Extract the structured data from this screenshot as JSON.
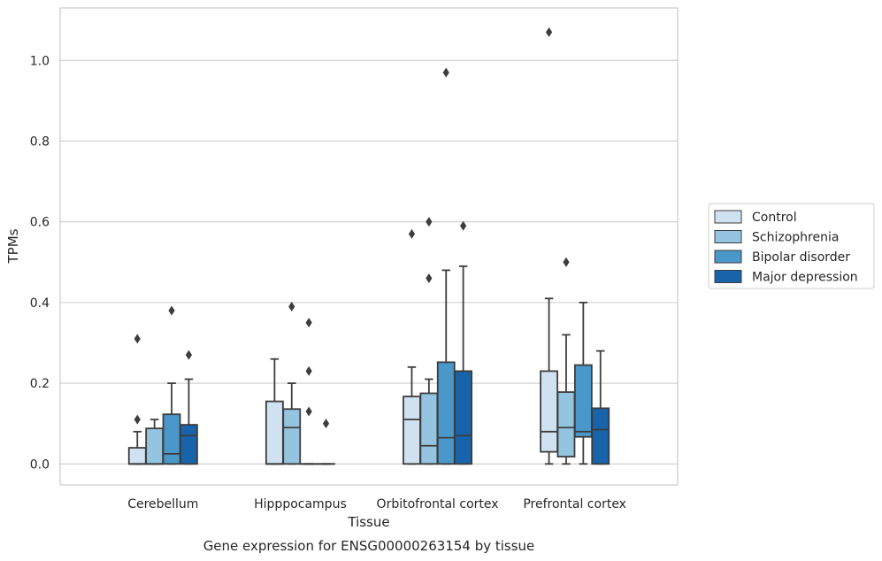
{
  "chart_data": {
    "type": "box",
    "caption": "Gene expression for ENSG00000263154 by tissue",
    "xlabel": "Tissue",
    "ylabel": "TPMs",
    "ylim": [
      -0.052,
      1.13
    ],
    "yticks": [
      0.0,
      0.2,
      0.4,
      0.6,
      0.8,
      1.0
    ],
    "ytick_labels": [
      "0.0",
      "0.2",
      "0.4",
      "0.6",
      "0.8",
      "1.0"
    ],
    "grid": "horizontal",
    "legend_position": "right",
    "categories": [
      "Cerebellum",
      "Hipppocampus",
      "Orbitofrontal cortex",
      "Prefrontal cortex"
    ],
    "series": [
      {
        "name": "Control",
        "color": "#d0e1f2",
        "boxes": [
          {
            "min": 0.0,
            "q1": 0.0,
            "median": 0.0,
            "q3": 0.04,
            "max": 0.08,
            "outliers": [
              0.11,
              0.31
            ]
          },
          {
            "min": 0.0,
            "q1": 0.0,
            "median": 0.0,
            "q3": 0.155,
            "max": 0.26,
            "outliers": []
          },
          {
            "min": 0.0,
            "q1": 0.0,
            "median": 0.11,
            "q3": 0.167,
            "max": 0.24,
            "outliers": [
              0.57
            ]
          },
          {
            "min": 0.0,
            "q1": 0.03,
            "median": 0.08,
            "q3": 0.23,
            "max": 0.41,
            "outliers": [
              1.07
            ]
          }
        ]
      },
      {
        "name": "Schizophrenia",
        "color": "#94c4df",
        "boxes": [
          {
            "min": 0.0,
            "q1": 0.0,
            "median": 0.0,
            "q3": 0.088,
            "max": 0.11,
            "outliers": []
          },
          {
            "min": 0.0,
            "q1": 0.0,
            "median": 0.09,
            "q3": 0.136,
            "max": 0.2,
            "outliers": [
              0.39
            ]
          },
          {
            "min": 0.0,
            "q1": 0.0,
            "median": 0.045,
            "q3": 0.175,
            "max": 0.21,
            "outliers": [
              0.46,
              0.6
            ]
          },
          {
            "min": 0.0,
            "q1": 0.018,
            "median": 0.09,
            "q3": 0.178,
            "max": 0.32,
            "outliers": [
              0.5
            ]
          }
        ]
      },
      {
        "name": "Bipolar disorder",
        "color": "#4a98c9",
        "boxes": [
          {
            "min": 0.0,
            "q1": 0.0,
            "median": 0.025,
            "q3": 0.123,
            "max": 0.2,
            "outliers": [
              0.38
            ]
          },
          {
            "min": 0.0,
            "q1": 0.0,
            "median": 0.0,
            "q3": 0.0,
            "max": 0.0,
            "outliers": [
              0.13,
              0.23,
              0.35
            ]
          },
          {
            "min": 0.0,
            "q1": 0.0,
            "median": 0.065,
            "q3": 0.252,
            "max": 0.48,
            "outliers": [
              0.97
            ]
          },
          {
            "min": 0.0,
            "q1": 0.067,
            "median": 0.08,
            "q3": 0.245,
            "max": 0.4,
            "outliers": []
          }
        ]
      },
      {
        "name": "Major depression",
        "color": "#1764ab",
        "boxes": [
          {
            "min": 0.0,
            "q1": 0.0,
            "median": 0.07,
            "q3": 0.097,
            "max": 0.21,
            "outliers": [
              0.27
            ]
          },
          {
            "min": 0.0,
            "q1": 0.0,
            "median": 0.0,
            "q3": 0.0,
            "max": 0.0,
            "outliers": [
              0.1
            ]
          },
          {
            "min": 0.0,
            "q1": 0.0,
            "median": 0.07,
            "q3": 0.23,
            "max": 0.49,
            "outliers": [
              0.59
            ]
          },
          {
            "min": 0.0,
            "q1": 0.0,
            "median": 0.085,
            "q3": 0.138,
            "max": 0.28,
            "outliers": []
          }
        ]
      }
    ]
  }
}
